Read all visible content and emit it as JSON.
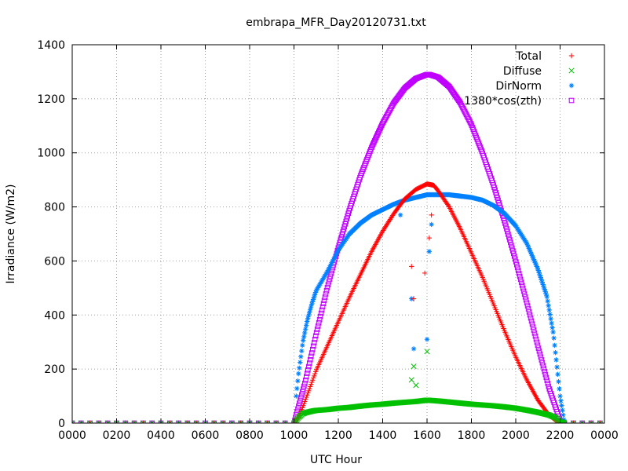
{
  "chart_data": {
    "type": "scatter",
    "title": "embrapa_MFR_Day20120731.txt",
    "xlabel": "UTC Hour",
    "ylabel": "Irradiance (W/m2)",
    "xlim": [
      0,
      24
    ],
    "ylim": [
      0,
      1400
    ],
    "grid": true,
    "legend_position": "top-right",
    "x_ticks": [
      {
        "value": 0,
        "label": "0000"
      },
      {
        "value": 2,
        "label": "0200"
      },
      {
        "value": 4,
        "label": "0400"
      },
      {
        "value": 6,
        "label": "0600"
      },
      {
        "value": 8,
        "label": "0800"
      },
      {
        "value": 10,
        "label": "1000"
      },
      {
        "value": 12,
        "label": "1200"
      },
      {
        "value": 14,
        "label": "1400"
      },
      {
        "value": 16,
        "label": "1600"
      },
      {
        "value": 18,
        "label": "1800"
      },
      {
        "value": 20,
        "label": "2000"
      },
      {
        "value": 22,
        "label": "2200"
      },
      {
        "value": 24,
        "label": "0000"
      }
    ],
    "y_ticks": [
      0,
      200,
      400,
      600,
      800,
      1000,
      1200,
      1400
    ],
    "series": [
      {
        "name": "Total",
        "marker": "+",
        "color": "#ff0000",
        "x": [
          10.0,
          10.2,
          10.4,
          10.6,
          10.8,
          11.0,
          11.5,
          12.0,
          12.5,
          13.0,
          13.5,
          14.0,
          14.5,
          15.0,
          15.5,
          16.0,
          16.3,
          16.5,
          17.0,
          17.5,
          18.0,
          18.5,
          19.0,
          19.5,
          20.0,
          20.5,
          21.0,
          21.5,
          21.8,
          22.0,
          22.2
        ],
        "y": [
          0,
          20,
          60,
          105,
          150,
          195,
          285,
          375,
          465,
          550,
          635,
          710,
          775,
          830,
          865,
          885,
          880,
          860,
          800,
          720,
          630,
          540,
          440,
          340,
          245,
          160,
          85,
          30,
          10,
          0,
          0
        ]
      },
      {
        "name": "Diffuse",
        "marker": "x",
        "color": "#00c000",
        "x": [
          10.0,
          10.2,
          10.4,
          10.6,
          10.8,
          11.0,
          11.5,
          12.0,
          12.5,
          13.0,
          13.5,
          14.0,
          14.5,
          15.0,
          15.5,
          16.0,
          16.5,
          17.0,
          17.5,
          18.0,
          18.5,
          19.0,
          19.5,
          20.0,
          20.5,
          21.0,
          21.5,
          21.8,
          22.0,
          22.2
        ],
        "y": [
          0,
          20,
          35,
          40,
          44,
          47,
          50,
          55,
          58,
          63,
          67,
          70,
          74,
          77,
          80,
          85,
          82,
          78,
          74,
          70,
          67,
          64,
          60,
          55,
          48,
          40,
          30,
          20,
          5,
          0
        ]
      },
      {
        "name": "DirNorm",
        "marker": "*",
        "color": "#0080ff",
        "x": [
          10.1,
          10.2,
          10.4,
          10.6,
          10.8,
          11.0,
          11.5,
          12.0,
          12.5,
          13.0,
          13.5,
          14.0,
          14.5,
          15.0,
          15.5,
          16.0,
          16.5,
          17.0,
          17.5,
          18.0,
          18.5,
          19.0,
          19.5,
          20.0,
          20.5,
          21.0,
          21.4,
          21.7,
          22.0,
          22.2
        ],
        "y": [
          100,
          180,
          300,
          380,
          440,
          490,
          560,
          640,
          700,
          740,
          770,
          790,
          810,
          825,
          835,
          845,
          845,
          845,
          840,
          835,
          825,
          805,
          775,
          730,
          665,
          570,
          470,
          330,
          100,
          0
        ]
      },
      {
        "name": "1380*cos(zth)",
        "marker": "square",
        "color": "#c000ff",
        "x": [
          10.0,
          10.5,
          11.0,
          11.5,
          12.0,
          12.5,
          13.0,
          13.5,
          14.0,
          14.5,
          15.0,
          15.5,
          16.0,
          16.1,
          16.5,
          17.0,
          17.5,
          18.0,
          18.5,
          19.0,
          19.5,
          20.0,
          20.5,
          21.0,
          21.5,
          22.0,
          22.2
        ],
        "y": [
          0,
          150,
          330,
          500,
          650,
          790,
          915,
          1020,
          1110,
          1185,
          1240,
          1275,
          1290,
          1290,
          1280,
          1245,
          1185,
          1105,
          1000,
          880,
          745,
          600,
          445,
          285,
          130,
          10,
          0
        ]
      }
    ],
    "outliers": [
      {
        "series": "Total",
        "x": 15.3,
        "y": 580
      },
      {
        "series": "Total",
        "x": 15.4,
        "y": 460
      },
      {
        "series": "Total",
        "x": 15.9,
        "y": 555
      },
      {
        "series": "Total",
        "x": 16.1,
        "y": 685
      },
      {
        "series": "Total",
        "x": 16.2,
        "y": 770
      },
      {
        "series": "Diffuse",
        "x": 15.3,
        "y": 160
      },
      {
        "series": "Diffuse",
        "x": 15.4,
        "y": 210
      },
      {
        "series": "Diffuse",
        "x": 15.5,
        "y": 140
      },
      {
        "series": "Diffuse",
        "x": 16.0,
        "y": 265
      },
      {
        "series": "DirNorm",
        "x": 15.3,
        "y": 460
      },
      {
        "series": "DirNorm",
        "x": 15.4,
        "y": 275
      },
      {
        "series": "DirNorm",
        "x": 16.0,
        "y": 310
      },
      {
        "series": "DirNorm",
        "x": 16.1,
        "y": 635
      },
      {
        "series": "DirNorm",
        "x": 16.2,
        "y": 735
      },
      {
        "series": "DirNorm",
        "x": 14.8,
        "y": 770
      }
    ]
  }
}
